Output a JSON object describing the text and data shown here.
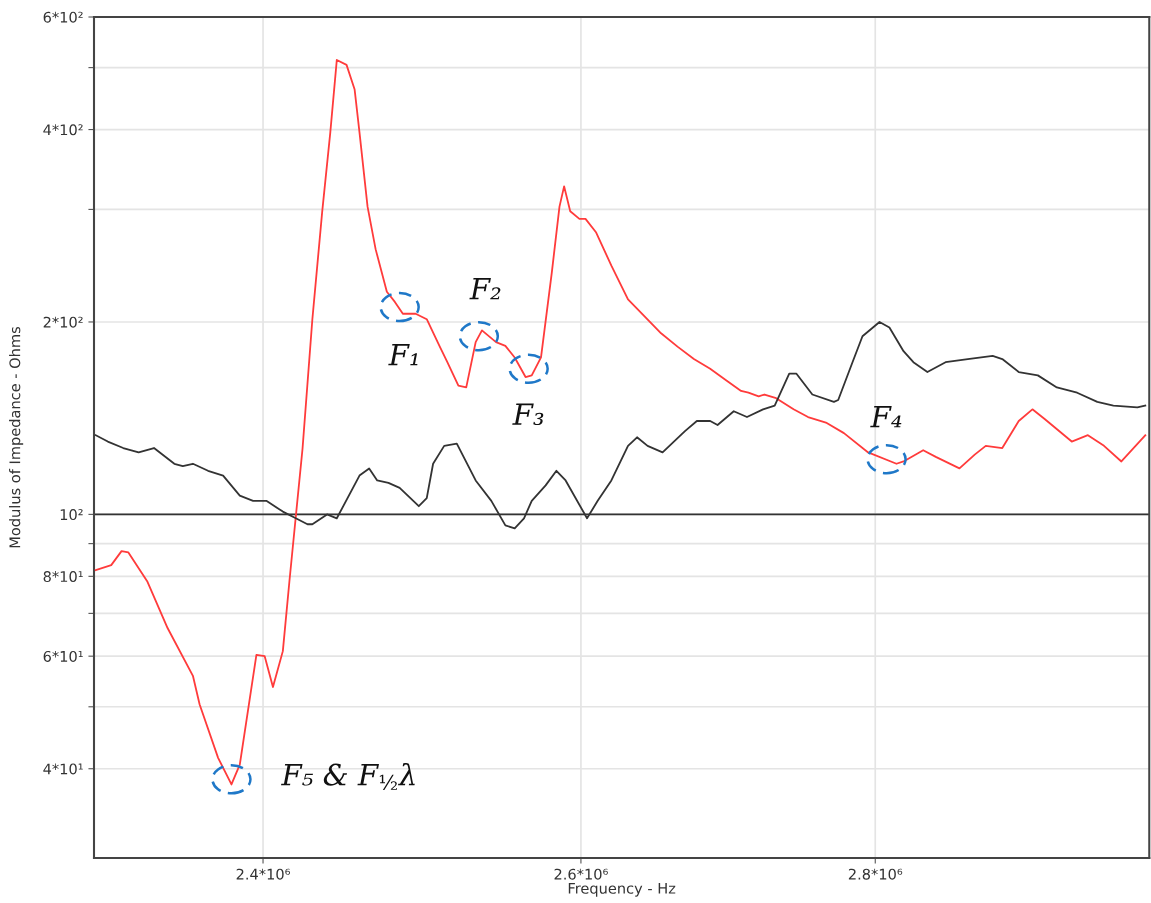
{
  "chart_data": {
    "type": "line",
    "xlabel": "Frequency - Hz",
    "ylabel": "Modulus of Impedance - Ohms",
    "log": "xy",
    "grid": true,
    "marker": "none",
    "line_style": "solid",
    "xlim": [
      2300000,
      3000000
    ],
    "ylim": [
      29,
      600
    ],
    "xticks": [
      {
        "value": 2400000,
        "label": "2.4*10⁶"
      },
      {
        "value": 2600000,
        "label": "2.6*10⁶"
      },
      {
        "value": 2800000,
        "label": "2.8*10⁶"
      }
    ],
    "yticks": [
      {
        "value": 40,
        "label": "4*10¹"
      },
      {
        "value": 50,
        "label": null
      },
      {
        "value": 60,
        "label": "6*10¹"
      },
      {
        "value": 70,
        "label": null
      },
      {
        "value": 80,
        "label": "8*10¹"
      },
      {
        "value": 90,
        "label": null
      },
      {
        "value": 100,
        "label": "10²"
      },
      {
        "value": 200,
        "label": "2*10²"
      },
      {
        "value": 300,
        "label": null
      },
      {
        "value": 400,
        "label": "4*10²"
      },
      {
        "value": 500,
        "label": null
      },
      {
        "value": 600,
        "label": "6*10²"
      }
    ],
    "ref_lines": [
      {
        "axis": "y",
        "value": 100,
        "label": null,
        "color": "#333333"
      }
    ],
    "series": [
      {
        "color": "#ff3b3b",
        "x": [
          2301000,
          2310000,
          2316000,
          2320000,
          2331000,
          2343000,
          2358000,
          2362000,
          2373000,
          2381000,
          2386000,
          2396000,
          2401000,
          2406000,
          2412000,
          2416000,
          2419000,
          2424000,
          2430000,
          2436000,
          2441000,
          2445000,
          2451000,
          2456000,
          2459000,
          2464000,
          2469000,
          2476000,
          2481000,
          2486000,
          2494000,
          2501000,
          2509000,
          2514000,
          2521000,
          2526000,
          2532000,
          2536000,
          2545000,
          2551000,
          2557000,
          2564000,
          2568000,
          2574000,
          2581000,
          2586000,
          2589000,
          2593000,
          2599000,
          2603000,
          2610000,
          2620000,
          2631000,
          2642000,
          2653000,
          2664000,
          2675000,
          2686000,
          2697000,
          2707000,
          2712000,
          2719000,
          2723000,
          2731000,
          2743000,
          2753000,
          2766000,
          2778000,
          2795000,
          2815000,
          2820000,
          2834000,
          2843000,
          2860000,
          2871000,
          2879000,
          2891000,
          2903000,
          2913000,
          2922000,
          2942000,
          2954000,
          2966000,
          2979000,
          2997000
        ],
        "values": [
          81.8,
          83.3,
          87.6,
          87.2,
          78.6,
          66.4,
          55.9,
          50.4,
          41.6,
          37.8,
          40.6,
          60.3,
          60.0,
          53.7,
          61.1,
          78.6,
          94.1,
          126.8,
          202,
          297,
          396,
          514,
          505,
          462,
          396,
          303,
          260,
          223,
          215,
          206,
          206,
          202,
          183.5,
          173,
          159,
          158,
          186,
          194,
          186,
          183.5,
          176,
          164,
          165,
          176,
          239,
          303,
          326,
          298,
          290,
          290,
          276,
          245,
          217,
          204,
          192,
          183,
          175,
          169,
          162,
          156,
          155,
          153,
          154,
          152,
          146,
          142,
          139,
          134,
          125,
          120,
          121,
          126,
          123,
          118,
          124,
          128,
          127,
          140,
          146,
          141,
          130,
          133,
          128,
          121,
          133
        ]
      },
      {
        "color": "#333333",
        "x": [
          2301000,
          2308000,
          2317000,
          2326000,
          2335000,
          2347000,
          2352000,
          2358000,
          2367000,
          2376000,
          2386000,
          2394000,
          2402000,
          2412000,
          2419000,
          2427000,
          2430000,
          2439000,
          2445000,
          2459000,
          2465000,
          2470000,
          2477000,
          2484000,
          2496000,
          2501000,
          2505000,
          2512000,
          2520000,
          2532000,
          2542000,
          2551000,
          2557000,
          2563000,
          2568000,
          2577000,
          2584000,
          2590000,
          2604000,
          2611000,
          2620000,
          2631000,
          2637000,
          2644000,
          2654000,
          2669000,
          2677000,
          2686000,
          2691000,
          2702000,
          2711000,
          2722000,
          2730000,
          2740000,
          2745000,
          2756000,
          2771000,
          2774000,
          2784000,
          2791000,
          2803000,
          2810000,
          2820000,
          2827000,
          2837000,
          2850000,
          2866000,
          2884000,
          2891000,
          2903000,
          2917000,
          2931000,
          2946000,
          2961000,
          2973000,
          2991000,
          2997000
        ],
        "values": [
          133,
          130,
          127,
          125,
          127,
          120,
          119,
          120,
          117,
          115,
          107,
          105,
          105,
          101,
          98.9,
          96.5,
          96.5,
          100,
          98.6,
          115,
          118,
          113,
          112,
          110,
          103,
          106,
          120,
          128,
          129,
          113,
          105,
          96.1,
          95.1,
          98.6,
          105,
          111,
          117,
          113,
          98.6,
          105,
          113,
          128,
          132,
          128,
          125,
          135,
          140,
          140,
          138,
          145,
          142,
          146,
          148,
          166,
          166,
          154,
          150,
          151,
          173,
          190,
          200,
          196,
          180,
          173,
          167,
          173,
          175,
          177,
          175,
          167,
          165,
          158,
          155,
          150,
          148,
          147,
          148
        ]
      }
    ],
    "annotations": [
      {
        "text": "F₁",
        "x": 2484000,
        "y": 211
      },
      {
        "text": "F₂",
        "x": 2534000,
        "y": 190
      },
      {
        "text": "F₃",
        "x": 2566000,
        "y": 169
      },
      {
        "text": "F₄",
        "x": 2808000,
        "y": 122
      },
      {
        "text": "F₅ & F$_{½}$λ",
        "x": 2381000,
        "y": 38.5
      }
    ]
  }
}
